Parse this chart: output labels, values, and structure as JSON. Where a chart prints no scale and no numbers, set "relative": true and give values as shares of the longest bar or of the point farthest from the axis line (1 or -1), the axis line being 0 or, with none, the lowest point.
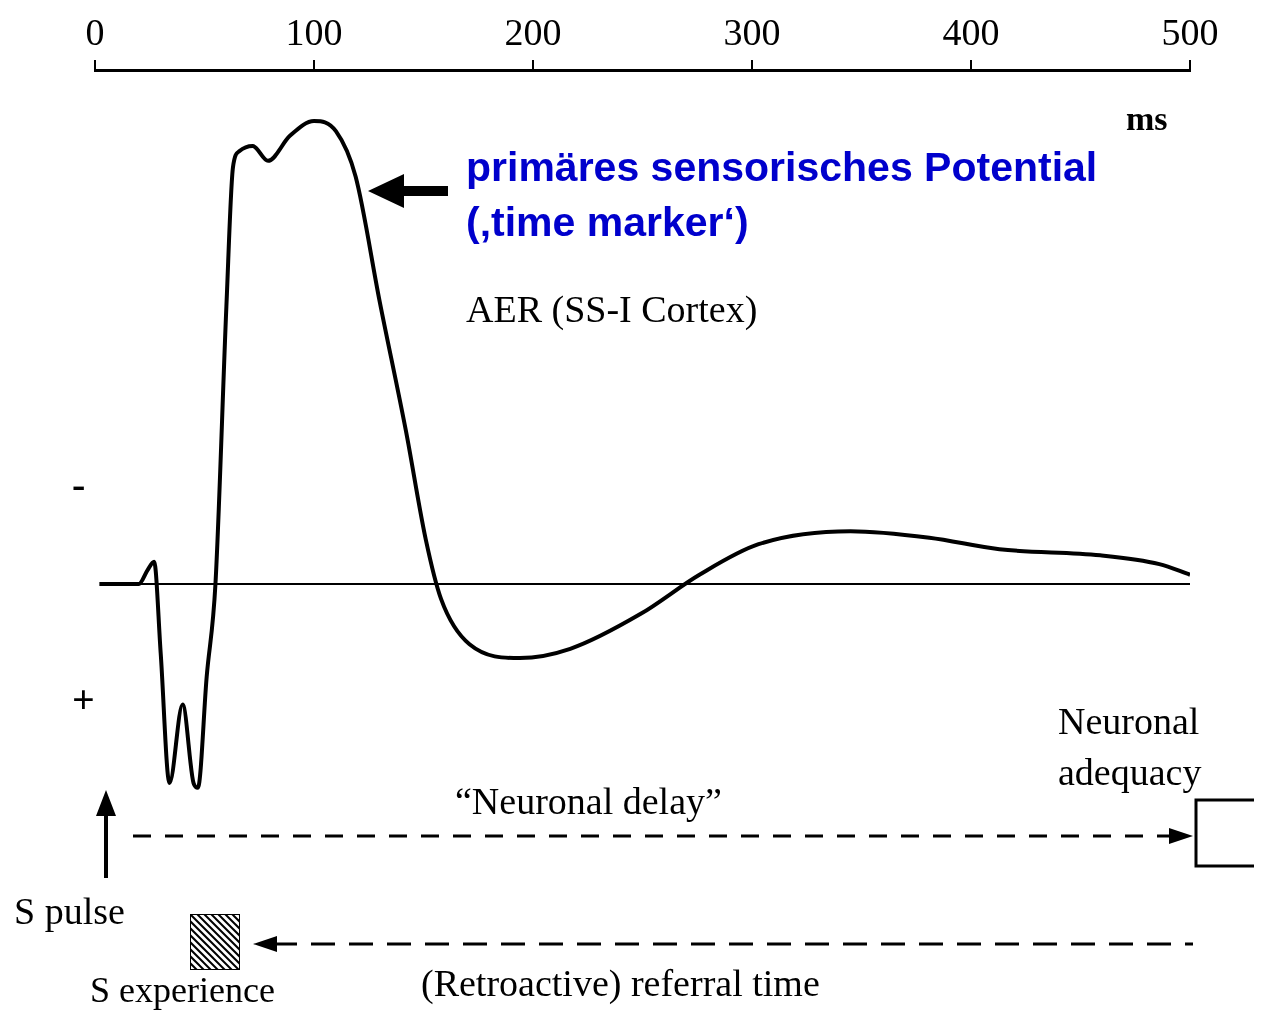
{
  "chart_data": {
    "type": "line",
    "relative": true,
    "xlabel": "ms",
    "xlim": [
      0,
      500
    ],
    "xticks": [
      0,
      100,
      200,
      300,
      400,
      500
    ],
    "grid": false,
    "legend": false,
    "marker": "none",
    "line_style": "solid",
    "ref_lines": [
      {
        "axis": "y",
        "value": 0
      }
    ],
    "series": [
      {
        "color": "#000000",
        "x": [
          2,
          20,
          24,
          27,
          30,
          34,
          40,
          45,
          47,
          51,
          55,
          60,
          63,
          66,
          72,
          79,
          89,
          100,
          110,
          119,
          130,
          142,
          151,
          158,
          171,
          194,
          217,
          249,
          276,
          303,
          345,
          381,
          413,
          459,
          486,
          500
        ],
        "values": [
          0,
          0,
          0.03,
          0.048,
          -0.15,
          -0.43,
          -0.26,
          -0.43,
          -0.44,
          -0.2,
          0,
          0.6,
          0.9,
          0.935,
          0.946,
          0.914,
          0.968,
          1,
          0.978,
          0.88,
          0.61,
          0.33,
          0.097,
          -0.032,
          -0.13,
          -0.16,
          -0.14,
          -0.065,
          0.02,
          0.086,
          0.114,
          0.1,
          0.075,
          0.062,
          0.043,
          0.02
        ]
      }
    ],
    "annotations": [
      "-",
      "+",
      "primäres sensorisches Potential\n(‚time marker‘)",
      "AER (SS-I Cortex)",
      "Neuronal\nadequacy",
      "“Neuronal delay”",
      "S pulse",
      "S experience",
      "(Retroactive) referral time"
    ]
  }
}
